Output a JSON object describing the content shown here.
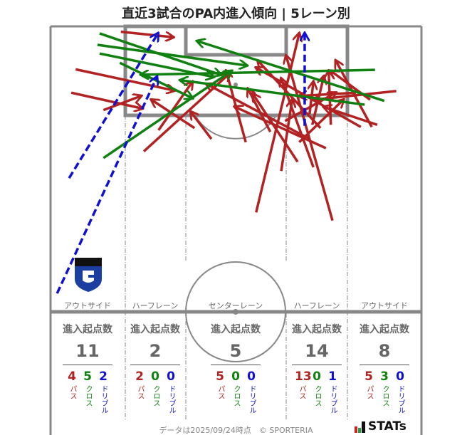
{
  "title": "直近3試合のPA内進入傾向 | 5レーン別",
  "lanes": [
    {
      "name": "アウトサイド",
      "header": "進入起点数",
      "total": "11",
      "pass": "4",
      "cross": "5",
      "dribble": "2"
    },
    {
      "name": "ハーフレーン",
      "header": "進入起点数",
      "total": "2",
      "pass": "2",
      "cross": "0",
      "dribble": "0"
    },
    {
      "name": "センターレーン",
      "header": "進入起点数",
      "total": "5",
      "pass": "5",
      "cross": "0",
      "dribble": "0"
    },
    {
      "name": "ハーフレーン",
      "header": "進入起点数",
      "total": "14",
      "pass": "13",
      "cross": "0",
      "dribble": "1"
    },
    {
      "name": "アウトサイド",
      "header": "進入起点数",
      "total": "8",
      "pass": "5",
      "cross": "3",
      "dribble": "0"
    }
  ],
  "labels": {
    "pass": "パス",
    "cross": "クロス",
    "dribble": "ドリブル"
  },
  "footer": "データは2025/09/24時点　© SPORTERIA",
  "brand": "STATs",
  "colors": {
    "pass": "#b22222",
    "cross": "#108010",
    "dribble": "#1010d0",
    "lines": "#888888"
  },
  "chart_data": {
    "type": "pitch-arrows",
    "units": "meters (x across pitch width 0-68, y distance from goal line 0-52.5)",
    "arrows": [
      {
        "type": "dribble",
        "from": [
          1.2,
          49.1
        ],
        "to": [
          19.5,
          9.3
        ]
      },
      {
        "type": "dribble",
        "from": [
          3.4,
          27.9
        ],
        "to": [
          19.7,
          1.3
        ]
      },
      {
        "type": "dribble",
        "from": [
          46.6,
          18.3
        ],
        "to": [
          46.6,
          1.3
        ]
      },
      {
        "type": "cross",
        "from": [
          9.0,
          1.3
        ],
        "to": [
          31.2,
          8.9
        ]
      },
      {
        "type": "cross",
        "from": [
          8.6,
          3.4
        ],
        "to": [
          36.0,
          7.2
        ]
      },
      {
        "type": "cross",
        "from": [
          12.7,
          6.7
        ],
        "to": [
          26.0,
          13.2
        ]
      },
      {
        "type": "cross",
        "from": [
          9.7,
          24.2
        ],
        "to": [
          33.2,
          8.2
        ]
      },
      {
        "type": "cross",
        "from": [
          9.0,
          5.0
        ],
        "to": [
          29.9,
          9.3
        ]
      },
      {
        "type": "cross",
        "from": [
          59.5,
          8.0
        ],
        "to": [
          16.6,
          8.9
        ]
      },
      {
        "type": "cross",
        "from": [
          61.2,
          13.7
        ],
        "to": [
          26.9,
          2.7
        ]
      },
      {
        "type": "cross",
        "from": [
          57.6,
          14.4
        ],
        "to": [
          23.8,
          9.9
        ]
      },
      {
        "type": "pass",
        "from": [
          12.9,
          1.0
        ],
        "to": [
          22.5,
          2.0
        ]
      },
      {
        "type": "pass",
        "from": [
          4.6,
          7.9
        ],
        "to": [
          22.7,
          11.8
        ]
      },
      {
        "type": "pass",
        "from": [
          3.8,
          12.2
        ],
        "to": [
          16.8,
          15.1
        ]
      },
      {
        "type": "pass",
        "from": [
          9.7,
          15.4
        ],
        "to": [
          16.6,
          12.8
        ]
      },
      {
        "type": "pass",
        "from": [
          26.4,
          18.7
        ],
        "to": [
          18.5,
          13.5
        ]
      },
      {
        "type": "pass",
        "from": [
          19.8,
          19.1
        ],
        "to": [
          26.0,
          10.2
        ]
      },
      {
        "type": "pass",
        "from": [
          17.1,
          23.0
        ],
        "to": [
          32.9,
          8.6
        ]
      },
      {
        "type": "pass",
        "from": [
          29.5,
          20.7
        ],
        "to": [
          25.7,
          15.7
        ]
      },
      {
        "type": "pass",
        "from": [
          37.7,
          34.2
        ],
        "to": [
          45.6,
          1.3
        ]
      },
      {
        "type": "pass",
        "from": [
          51.7,
          35.7
        ],
        "to": [
          43.2,
          5.4
        ]
      },
      {
        "type": "pass",
        "from": [
          48.2,
          25.9
        ],
        "to": [
          42.3,
          9.6
        ]
      },
      {
        "type": "pass",
        "from": [
          45.3,
          24.9
        ],
        "to": [
          37.1,
          12.4
        ]
      },
      {
        "type": "pass",
        "from": [
          50.5,
          22.4
        ],
        "to": [
          33.8,
          14.8
        ]
      },
      {
        "type": "pass",
        "from": [
          56.9,
          18.5
        ],
        "to": [
          37.7,
          7.6
        ]
      },
      {
        "type": "pass",
        "from": [
          58.9,
          18.5
        ],
        "to": [
          52.3,
          6.3
        ]
      },
      {
        "type": "pass",
        "from": [
          63.4,
          11.9
        ],
        "to": [
          48.2,
          13.5
        ]
      },
      {
        "type": "pass",
        "from": [
          48.0,
          18.1
        ],
        "to": [
          50.1,
          9.2
        ]
      },
      {
        "type": "pass",
        "from": [
          51.4,
          18.1
        ],
        "to": [
          51.0,
          8.2
        ]
      },
      {
        "type": "pass",
        "from": [
          47.5,
          16.1
        ],
        "to": [
          48.2,
          10.2
        ]
      },
      {
        "type": "pass",
        "from": [
          56.0,
          12.2
        ],
        "to": [
          45.6,
          12.8
        ]
      },
      {
        "type": "pass",
        "from": [
          58.6,
          13.5
        ],
        "to": [
          51.4,
          8.2
        ]
      },
      {
        "type": "pass",
        "from": [
          47.5,
          20.7
        ],
        "to": [
          28.6,
          10.6
        ]
      },
      {
        "type": "pass",
        "from": [
          49.5,
          18.7
        ],
        "to": [
          38.0,
          6.3
        ]
      },
      {
        "type": "pass",
        "from": [
          35.8,
          21.3
        ],
        "to": [
          32.2,
          8.2
        ]
      },
      {
        "type": "pass",
        "from": [
          43.0,
          17.4
        ],
        "to": [
          52.3,
          12.2
        ]
      },
      {
        "type": "pass",
        "from": [
          45.6,
          21.3
        ],
        "to": [
          53.7,
          13.5
        ]
      },
      {
        "type": "pass",
        "from": [
          59.9,
          18.1
        ],
        "to": [
          50.1,
          14.8
        ]
      },
      {
        "type": "pass",
        "from": [
          40.3,
          19.4
        ],
        "to": [
          36.2,
          11.5
        ]
      },
      {
        "type": "pass",
        "from": [
          42.3,
          26.6
        ],
        "to": [
          44.3,
          13.5
        ]
      }
    ]
  }
}
